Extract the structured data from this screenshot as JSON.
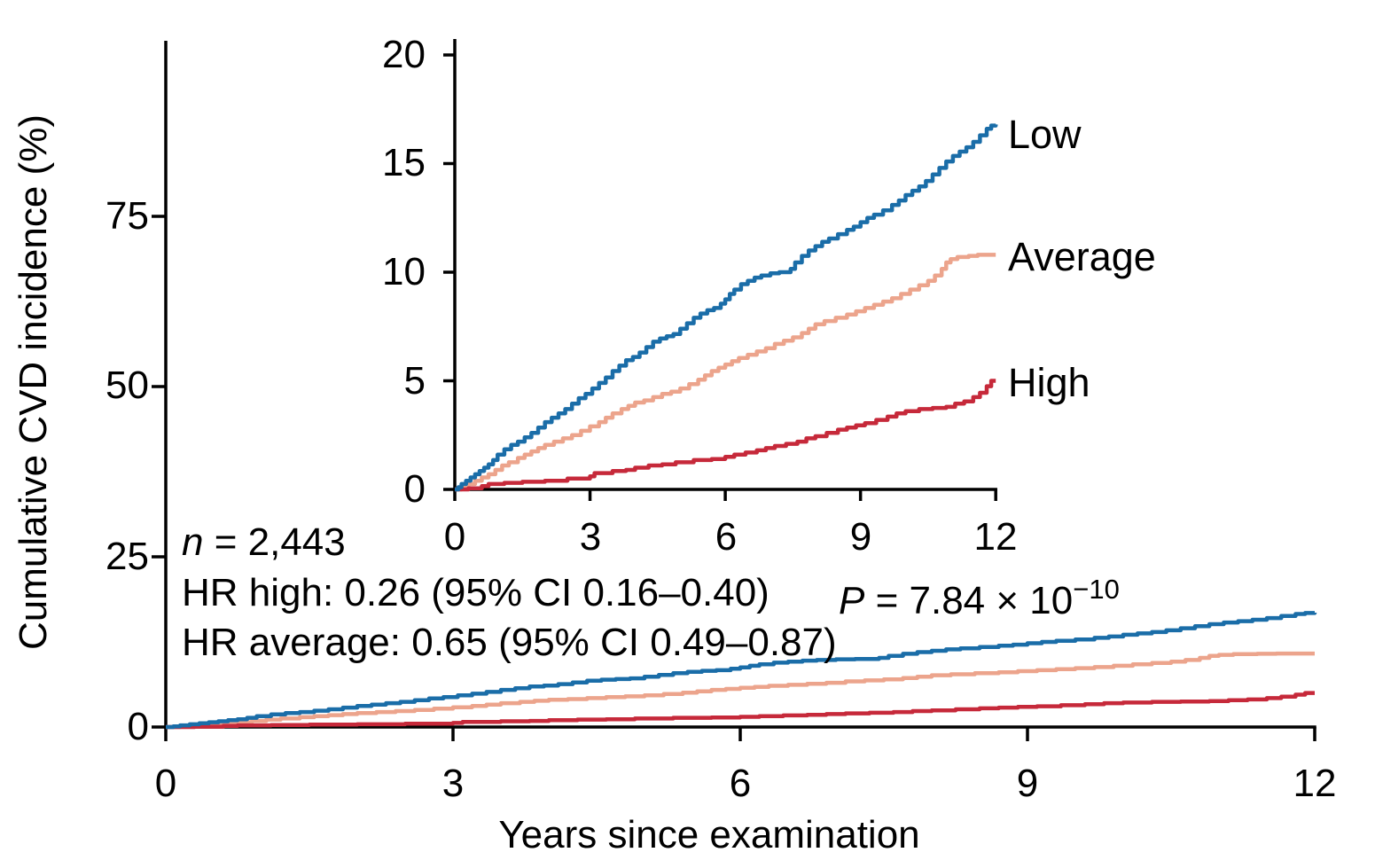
{
  "chart_data": {
    "type": "line",
    "subtype": "step-cumulative-incidence",
    "title": "",
    "xlabel": "Years since examination",
    "ylabel": "Cumulative CVD incidence (%)",
    "main_axes": {
      "xlim": [
        0,
        12
      ],
      "ylim": [
        0,
        100
      ],
      "xticks": [
        "0",
        "3",
        "6",
        "9",
        "12"
      ],
      "yticks": [
        "0",
        "25",
        "50",
        "75"
      ],
      "grid": false
    },
    "inset_axes": {
      "xlim": [
        0,
        12
      ],
      "ylim": [
        0,
        20
      ],
      "xticks": [
        "0",
        "3",
        "6",
        "9",
        "12"
      ],
      "yticks": [
        "0",
        "5",
        "10",
        "15",
        "20"
      ],
      "grid": false
    },
    "legend": {
      "position": "right-of-inset",
      "entries": [
        "Low",
        "Average",
        "High"
      ]
    },
    "colors": {
      "low": "#1a6da8",
      "average": "#eca48c",
      "high": "#c6293a",
      "axis": "#000000"
    },
    "series": [
      {
        "name": "Low",
        "color": "#1a6da8",
        "points": [
          [
            0,
            0
          ],
          [
            0.08,
            0.1
          ],
          [
            0.15,
            0.25
          ],
          [
            0.25,
            0.4
          ],
          [
            0.35,
            0.55
          ],
          [
            0.45,
            0.7
          ],
          [
            0.55,
            0.85
          ],
          [
            0.65,
            1.0
          ],
          [
            0.75,
            1.15
          ],
          [
            0.85,
            1.35
          ],
          [
            0.95,
            1.6
          ],
          [
            1.1,
            1.85
          ],
          [
            1.25,
            2.05
          ],
          [
            1.4,
            2.2
          ],
          [
            1.55,
            2.4
          ],
          [
            1.7,
            2.6
          ],
          [
            1.85,
            2.85
          ],
          [
            2.0,
            3.1
          ],
          [
            2.15,
            3.3
          ],
          [
            2.3,
            3.5
          ],
          [
            2.45,
            3.7
          ],
          [
            2.6,
            3.95
          ],
          [
            2.75,
            4.2
          ],
          [
            2.9,
            4.4
          ],
          [
            3.05,
            4.65
          ],
          [
            3.2,
            4.9
          ],
          [
            3.35,
            5.15
          ],
          [
            3.5,
            5.45
          ],
          [
            3.65,
            5.7
          ],
          [
            3.8,
            5.95
          ],
          [
            3.95,
            6.1
          ],
          [
            4.1,
            6.3
          ],
          [
            4.25,
            6.55
          ],
          [
            4.4,
            6.8
          ],
          [
            4.55,
            6.95
          ],
          [
            4.7,
            7.05
          ],
          [
            4.85,
            7.15
          ],
          [
            5.0,
            7.4
          ],
          [
            5.15,
            7.65
          ],
          [
            5.3,
            7.9
          ],
          [
            5.45,
            8.1
          ],
          [
            5.6,
            8.25
          ],
          [
            5.75,
            8.35
          ],
          [
            5.9,
            8.55
          ],
          [
            6.0,
            8.75
          ],
          [
            6.1,
            9.0
          ],
          [
            6.2,
            9.2
          ],
          [
            6.35,
            9.45
          ],
          [
            6.5,
            9.6
          ],
          [
            6.65,
            9.75
          ],
          [
            6.8,
            9.85
          ],
          [
            7.0,
            9.95
          ],
          [
            7.2,
            10.0
          ],
          [
            7.45,
            10.15
          ],
          [
            7.55,
            10.45
          ],
          [
            7.7,
            10.75
          ],
          [
            7.85,
            11.0
          ],
          [
            8.0,
            11.2
          ],
          [
            8.15,
            11.4
          ],
          [
            8.3,
            11.55
          ],
          [
            8.5,
            11.75
          ],
          [
            8.7,
            11.95
          ],
          [
            8.85,
            12.1
          ],
          [
            9.0,
            12.3
          ],
          [
            9.15,
            12.5
          ],
          [
            9.3,
            12.65
          ],
          [
            9.5,
            12.85
          ],
          [
            9.7,
            13.1
          ],
          [
            9.85,
            13.3
          ],
          [
            10.0,
            13.55
          ],
          [
            10.15,
            13.75
          ],
          [
            10.3,
            13.95
          ],
          [
            10.45,
            14.2
          ],
          [
            10.6,
            14.5
          ],
          [
            10.75,
            14.8
          ],
          [
            10.9,
            15.1
          ],
          [
            11.05,
            15.35
          ],
          [
            11.2,
            15.55
          ],
          [
            11.35,
            15.75
          ],
          [
            11.5,
            16.0
          ],
          [
            11.65,
            16.3
          ],
          [
            11.8,
            16.6
          ],
          [
            11.9,
            16.75
          ],
          [
            12,
            16.8
          ]
        ]
      },
      {
        "name": "Average",
        "color": "#eca48c",
        "points": [
          [
            0,
            0
          ],
          [
            0.15,
            0.1
          ],
          [
            0.3,
            0.25
          ],
          [
            0.45,
            0.4
          ],
          [
            0.6,
            0.55
          ],
          [
            0.75,
            0.7
          ],
          [
            0.9,
            0.9
          ],
          [
            1.05,
            1.1
          ],
          [
            1.2,
            1.25
          ],
          [
            1.4,
            1.45
          ],
          [
            1.55,
            1.6
          ],
          [
            1.7,
            1.75
          ],
          [
            1.85,
            1.9
          ],
          [
            2.0,
            2.05
          ],
          [
            2.2,
            2.2
          ],
          [
            2.4,
            2.35
          ],
          [
            2.6,
            2.5
          ],
          [
            2.8,
            2.7
          ],
          [
            3.0,
            2.9
          ],
          [
            3.2,
            3.1
          ],
          [
            3.35,
            3.3
          ],
          [
            3.5,
            3.5
          ],
          [
            3.7,
            3.7
          ],
          [
            3.85,
            3.85
          ],
          [
            4.0,
            4.0
          ],
          [
            4.2,
            4.1
          ],
          [
            4.4,
            4.25
          ],
          [
            4.6,
            4.4
          ],
          [
            4.8,
            4.5
          ],
          [
            5.0,
            4.65
          ],
          [
            5.2,
            4.85
          ],
          [
            5.4,
            5.05
          ],
          [
            5.55,
            5.25
          ],
          [
            5.7,
            5.45
          ],
          [
            5.85,
            5.6
          ],
          [
            6.0,
            5.75
          ],
          [
            6.15,
            5.9
          ],
          [
            6.3,
            6.05
          ],
          [
            6.5,
            6.2
          ],
          [
            6.7,
            6.35
          ],
          [
            6.9,
            6.5
          ],
          [
            7.1,
            6.7
          ],
          [
            7.3,
            6.85
          ],
          [
            7.5,
            7.0
          ],
          [
            7.7,
            7.2
          ],
          [
            7.85,
            7.4
          ],
          [
            8.0,
            7.6
          ],
          [
            8.2,
            7.75
          ],
          [
            8.45,
            7.9
          ],
          [
            8.7,
            8.05
          ],
          [
            8.9,
            8.2
          ],
          [
            9.1,
            8.35
          ],
          [
            9.3,
            8.5
          ],
          [
            9.5,
            8.65
          ],
          [
            9.7,
            8.8
          ],
          [
            9.9,
            9.0
          ],
          [
            10.1,
            9.2
          ],
          [
            10.3,
            9.4
          ],
          [
            10.5,
            9.6
          ],
          [
            10.65,
            9.85
          ],
          [
            10.8,
            10.15
          ],
          [
            10.9,
            10.45
          ],
          [
            11.0,
            10.6
          ],
          [
            11.15,
            10.7
          ],
          [
            11.4,
            10.75
          ],
          [
            11.6,
            10.8
          ],
          [
            12,
            10.8
          ]
        ]
      },
      {
        "name": "High",
        "color": "#c6293a",
        "points": [
          [
            0,
            0
          ],
          [
            0.3,
            0.05
          ],
          [
            0.6,
            0.15
          ],
          [
            0.75,
            0.25
          ],
          [
            1.1,
            0.3
          ],
          [
            1.5,
            0.35
          ],
          [
            2.0,
            0.4
          ],
          [
            2.5,
            0.5
          ],
          [
            3.0,
            0.6
          ],
          [
            3.1,
            0.75
          ],
          [
            3.5,
            0.85
          ],
          [
            3.8,
            0.9
          ],
          [
            4.0,
            1.0
          ],
          [
            4.3,
            1.1
          ],
          [
            4.6,
            1.15
          ],
          [
            4.9,
            1.25
          ],
          [
            5.3,
            1.35
          ],
          [
            5.7,
            1.4
          ],
          [
            6.0,
            1.5
          ],
          [
            6.2,
            1.6
          ],
          [
            6.45,
            1.7
          ],
          [
            6.7,
            1.8
          ],
          [
            6.9,
            1.9
          ],
          [
            7.1,
            2.0
          ],
          [
            7.35,
            2.1
          ],
          [
            7.6,
            2.2
          ],
          [
            7.8,
            2.35
          ],
          [
            8.0,
            2.45
          ],
          [
            8.25,
            2.6
          ],
          [
            8.5,
            2.75
          ],
          [
            8.7,
            2.85
          ],
          [
            8.9,
            2.95
          ],
          [
            9.1,
            3.05
          ],
          [
            9.35,
            3.2
          ],
          [
            9.6,
            3.35
          ],
          [
            9.8,
            3.5
          ],
          [
            10.0,
            3.6
          ],
          [
            10.3,
            3.7
          ],
          [
            10.6,
            3.75
          ],
          [
            10.9,
            3.8
          ],
          [
            11.1,
            3.95
          ],
          [
            11.3,
            4.05
          ],
          [
            11.5,
            4.25
          ],
          [
            11.65,
            4.45
          ],
          [
            11.8,
            4.75
          ],
          [
            11.9,
            5.0
          ],
          [
            12,
            5.0
          ]
        ]
      }
    ],
    "annotations": {
      "n_italic": "n",
      "n_rest": " = 2,443",
      "hr_high": "HR high: 0.26 (95% CI 0.16–0.40)",
      "hr_average": "HR average: 0.65 (95% CI 0.49–0.87)",
      "p_italic": "P",
      "p_rest": " = 7.84 × 10",
      "p_exponent": "−10"
    }
  }
}
